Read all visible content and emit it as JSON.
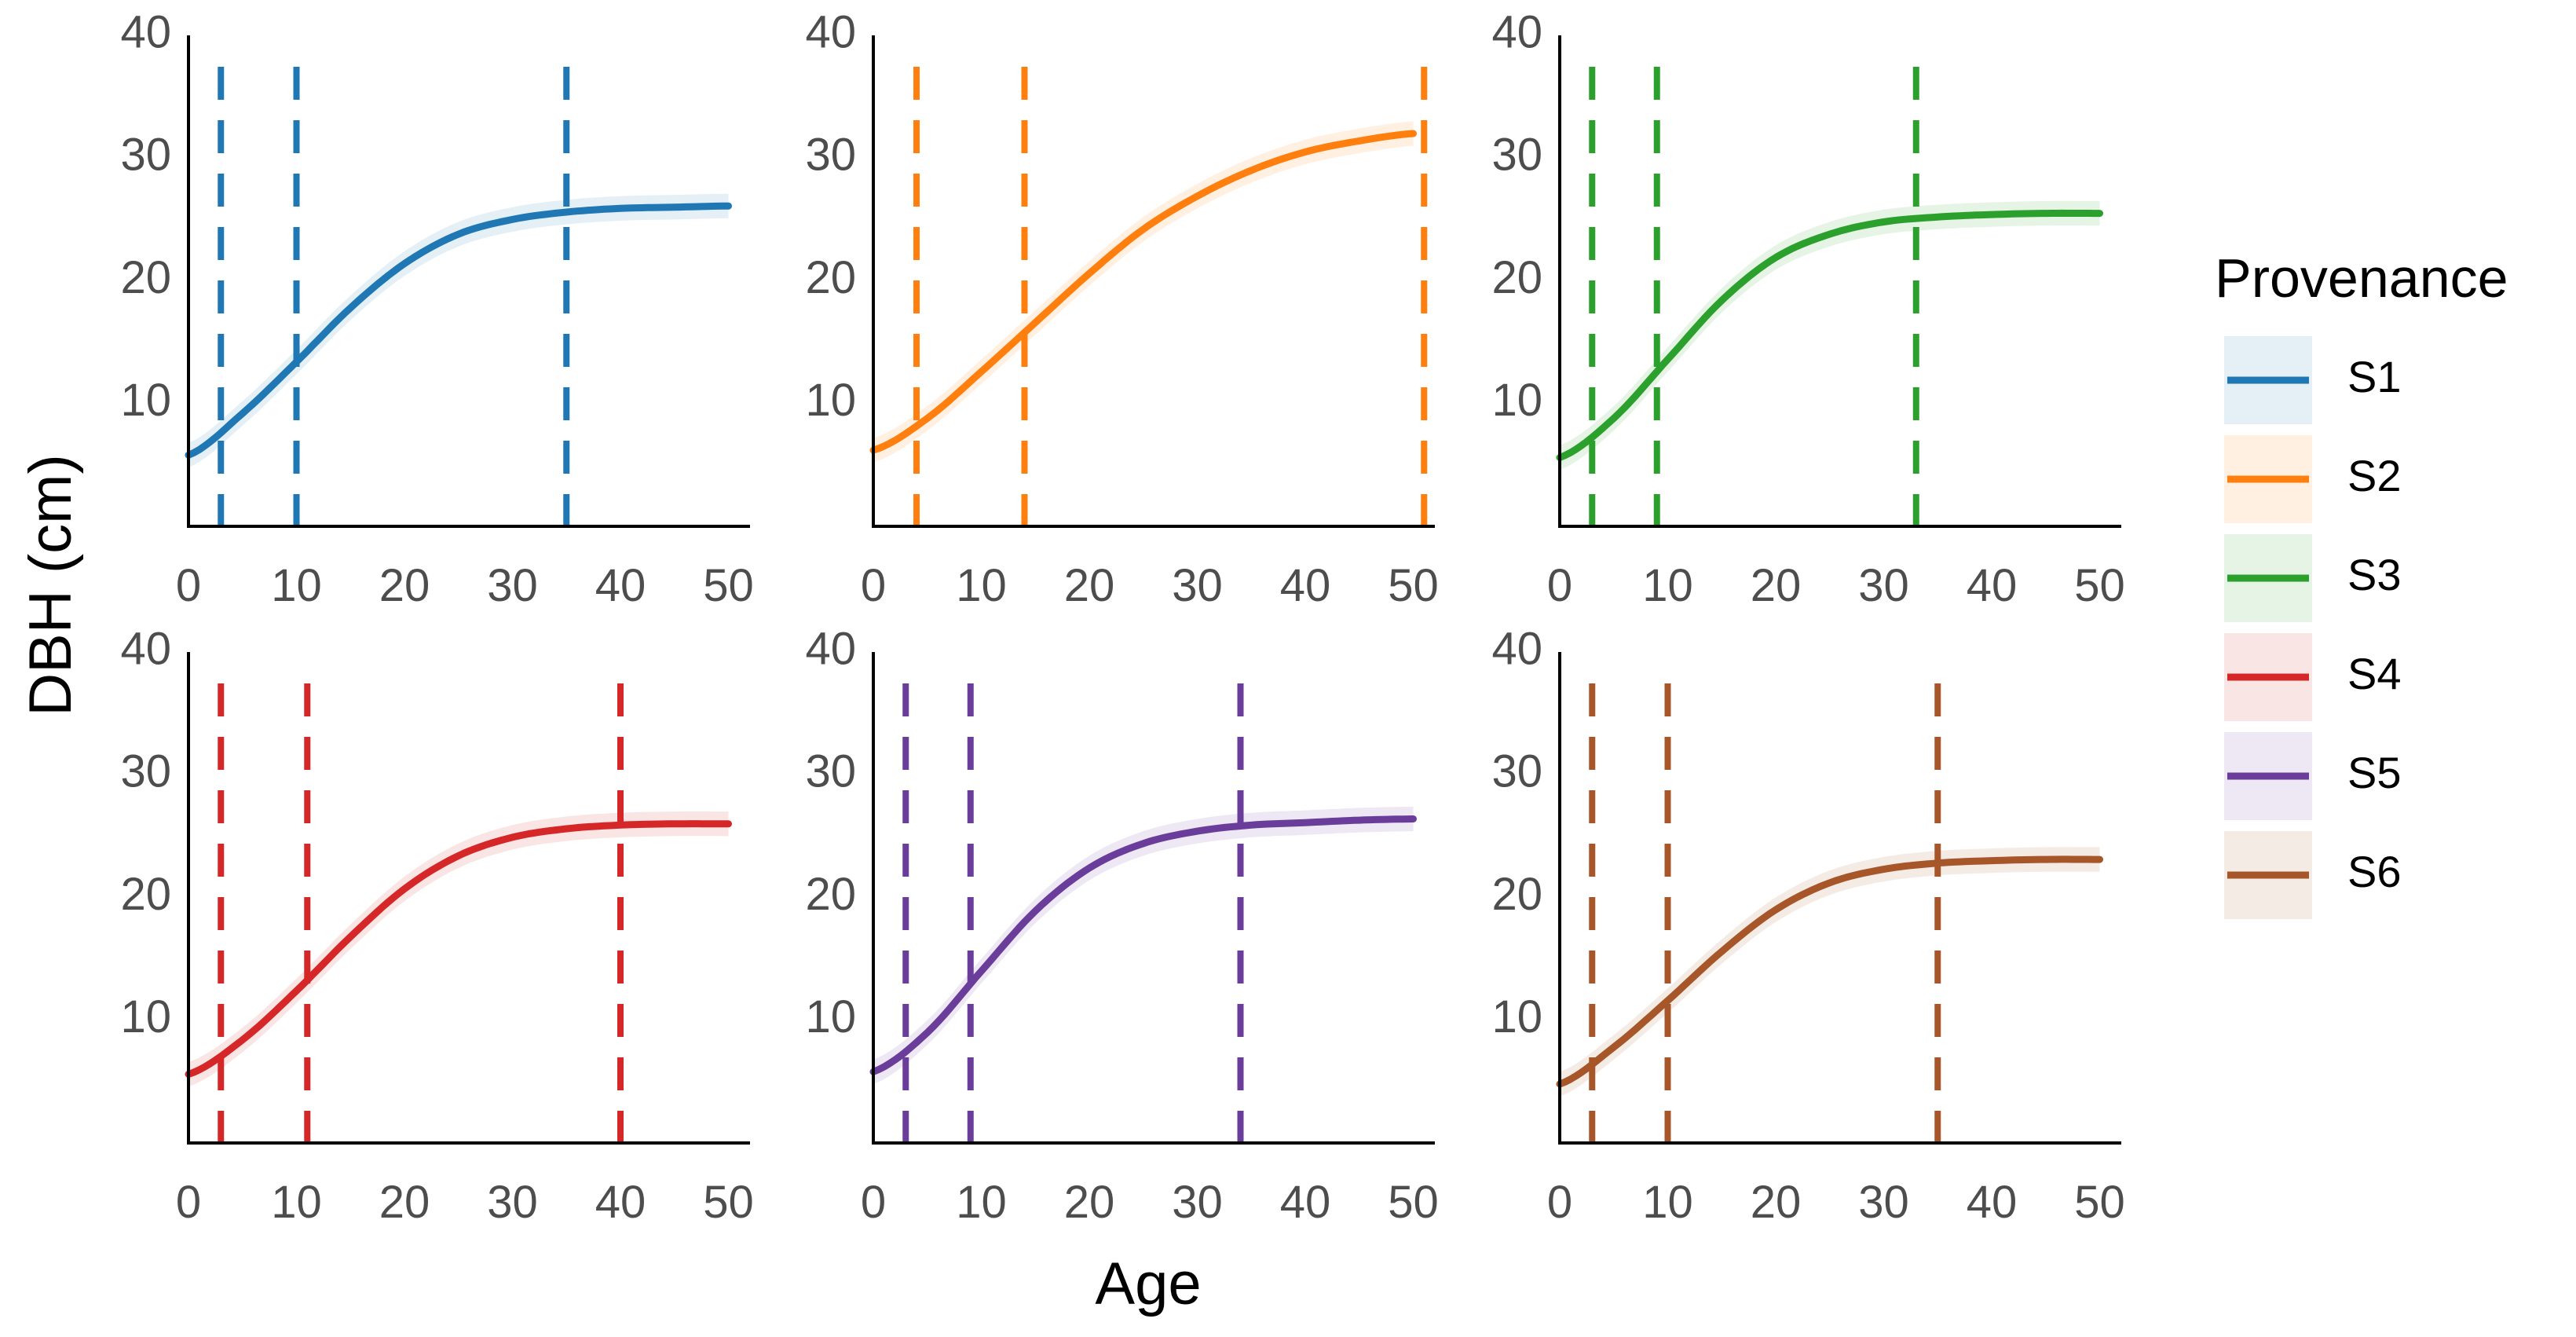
{
  "chart_data": {
    "type": "line",
    "layout": "2x3 facets",
    "xlabel": "Age",
    "ylabel": "DBH (cm)",
    "xlim": [
      0,
      52
    ],
    "ylim": [
      0,
      40
    ],
    "x_ticks": [
      0,
      10,
      20,
      30,
      40,
      50
    ],
    "y_ticks": [
      10,
      20,
      30,
      40
    ],
    "legend": {
      "title": "Provenance",
      "placement": "right"
    },
    "series": [
      {
        "name": "S1",
        "color": "#1f77b4",
        "x": [
          0,
          5,
          10,
          15,
          20,
          25,
          30,
          35,
          40,
          45,
          50
        ],
        "y": [
          5.8,
          9.2,
          13.4,
          17.8,
          21.4,
          23.8,
          25.0,
          25.6,
          25.9,
          26.0,
          26.1
        ],
        "ci_halfwidth": 1.0,
        "vlines": [
          3,
          10,
          35
        ]
      },
      {
        "name": "S2",
        "color": "#ff7f0e",
        "x": [
          0,
          5,
          10,
          15,
          20,
          25,
          30,
          35,
          40,
          45,
          50
        ],
        "y": [
          6.2,
          8.8,
          12.6,
          16.6,
          20.6,
          24.2,
          26.9,
          29.0,
          30.5,
          31.4,
          32.0
        ],
        "ci_halfwidth": 1.0,
        "vlines": [
          4,
          14,
          51
        ]
      },
      {
        "name": "S3",
        "color": "#2ca02c",
        "x": [
          0,
          5,
          10,
          15,
          20,
          25,
          30,
          35,
          40,
          45,
          50
        ],
        "y": [
          5.6,
          8.8,
          13.6,
          18.4,
          21.9,
          23.8,
          24.8,
          25.2,
          25.4,
          25.5,
          25.5
        ],
        "ci_halfwidth": 1.0,
        "vlines": [
          3,
          9,
          33
        ]
      },
      {
        "name": "S4",
        "color": "#d62728",
        "x": [
          0,
          5,
          10,
          15,
          20,
          25,
          30,
          35,
          40,
          45,
          50
        ],
        "y": [
          5.6,
          8.4,
          12.4,
          16.8,
          20.7,
          23.4,
          24.9,
          25.6,
          25.9,
          26.0,
          26.0
        ],
        "ci_halfwidth": 1.0,
        "vlines": [
          3,
          11,
          40
        ]
      },
      {
        "name": "S5",
        "color": "#6a3d9a",
        "x": [
          0,
          5,
          10,
          15,
          20,
          25,
          30,
          35,
          40,
          45,
          50
        ],
        "y": [
          5.8,
          9.0,
          14.0,
          18.9,
          22.4,
          24.4,
          25.4,
          25.9,
          26.1,
          26.3,
          26.4
        ],
        "ci_halfwidth": 1.0,
        "vlines": [
          3,
          9,
          34
        ]
      },
      {
        "name": "S6",
        "color": "#a65628",
        "x": [
          0,
          5,
          10,
          15,
          20,
          25,
          30,
          35,
          40,
          45,
          50
        ],
        "y": [
          4.8,
          7.8,
          11.6,
          15.6,
          19.0,
          21.2,
          22.3,
          22.8,
          23.0,
          23.1,
          23.1
        ],
        "ci_halfwidth": 1.0,
        "vlines": [
          3,
          10,
          35
        ]
      }
    ]
  }
}
